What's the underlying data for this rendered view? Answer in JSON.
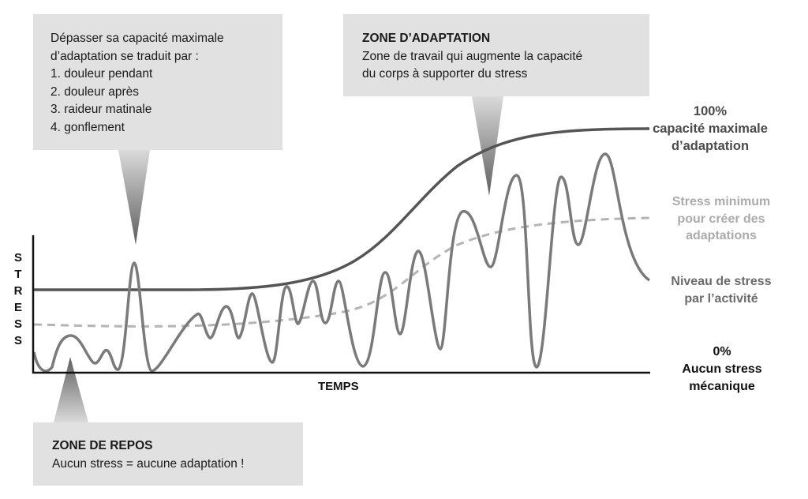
{
  "axes": {
    "y_label_letters": [
      "S",
      "T",
      "R",
      "E",
      "S",
      "S"
    ],
    "x_label": "TEMPS"
  },
  "callouts": {
    "overload": {
      "intro": [
        "Dépasser sa capacité maximale",
        "d’adaptation se traduit par :"
      ],
      "items": [
        "1.  douleur pendant",
        "2. douleur après",
        "3. raideur matinale",
        "4. gonflement"
      ]
    },
    "adaptation": {
      "title": "ZONE D’ADAPTATION",
      "lines": [
        "Zone de travail qui augmente la capacité",
        "du corps à supporter du stress"
      ]
    },
    "rest": {
      "title": "ZONE DE REPOS",
      "text": "Aucun stress = aucune adaptation !"
    }
  },
  "curve_labels": {
    "max_capacity": [
      "100%",
      "capacité maximale",
      "d’adaptation"
    ],
    "min_stress": [
      "Stress minimum",
      "pour créer des",
      "adaptations"
    ],
    "activity_stress": [
      "Niveau de stress",
      "par l’activité"
    ],
    "zero": [
      "0%",
      "Aucun stress",
      "mécanique"
    ]
  },
  "colors": {
    "max_capacity_curve": "#555555",
    "min_stress_curve": "#b4b4b4",
    "activity_curve": "#7a7a7a",
    "axis": "#111111",
    "callout_bg": "#e1e1e1"
  }
}
